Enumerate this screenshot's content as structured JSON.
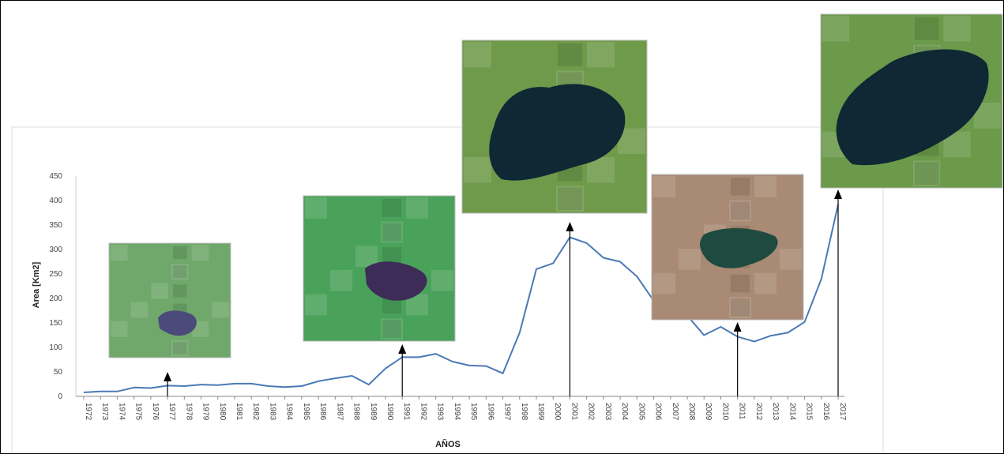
{
  "chart_data": {
    "type": "line",
    "title": "",
    "xlabel": "AÑOS",
    "ylabel": "Area [Km2]",
    "ylim": [
      0,
      450
    ],
    "yticks": [
      0,
      50,
      100,
      150,
      200,
      250,
      300,
      350,
      400,
      450
    ],
    "grid": false,
    "legend": "none",
    "line_color": "#4a7ab5",
    "x": [
      "1972",
      "1973",
      "1974",
      "1975",
      "1976",
      "1977",
      "1978",
      "1979",
      "1980",
      "1981",
      "1982",
      "1983",
      "1984",
      "1985",
      "1986",
      "1987",
      "1988",
      "1989",
      "1990",
      "1991",
      "1992",
      "1993",
      "1994",
      "1995",
      "1996",
      "1997",
      "1998",
      "1999",
      "2000",
      "2001",
      "2002",
      "2003",
      "2004",
      "2005",
      "2006",
      "2007",
      "2008",
      "2009",
      "2010",
      "2011",
      "2012",
      "2013",
      "2014",
      "2015",
      "2016",
      "2017"
    ],
    "series": [
      {
        "values": [
          8,
          10,
          10,
          18,
          17,
          22,
          21,
          24,
          23,
          26,
          26,
          21,
          19,
          21,
          31,
          37,
          42,
          24,
          57,
          80,
          80,
          87,
          71,
          63,
          62,
          47,
          130,
          260,
          272,
          325,
          313,
          283,
          275,
          245,
          195,
          185,
          165,
          125,
          142,
          122,
          112,
          124,
          130,
          152,
          240,
          392
        ]
      }
    ],
    "annotations": [
      {
        "year": "1977",
        "image": "lake-1977-thumbnail",
        "water_color": "#4b4a7a",
        "land_color": "#6fa86a"
      },
      {
        "year": "1991",
        "image": "lake-1991-thumbnail",
        "water_color": "#3d2b58",
        "land_color": "#4aa25a"
      },
      {
        "year": "2001",
        "image": "lake-2001-thumbnail",
        "water_color": "#0f2834",
        "land_color": "#6f9a4a"
      },
      {
        "year": "2011",
        "image": "lake-2011-thumbnail",
        "water_color": "#1f4a40",
        "land_color": "#a98a74"
      },
      {
        "year": "2017",
        "image": "lake-2017-thumbnail",
        "water_color": "#0f2834",
        "land_color": "#6a9a4a"
      }
    ]
  }
}
